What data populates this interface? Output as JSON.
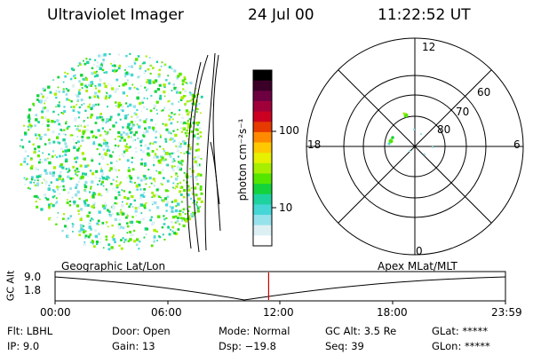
{
  "header": {
    "instrument": "Ultraviolet Imager",
    "date": "24 Jul 00",
    "time": "11:22:52 UT"
  },
  "colorbar": {
    "label": "photon cm⁻²s⁻¹",
    "ticks": [
      "100",
      "10"
    ],
    "colors": [
      "#000000",
      "#3a0028",
      "#6d0040",
      "#a0003a",
      "#cc0020",
      "#e63a00",
      "#ff8a00",
      "#ffc800",
      "#e6f000",
      "#a8ee00",
      "#55e600",
      "#14d23c",
      "#1ed2a0",
      "#46d6d6",
      "#96e2ea",
      "#dcf0f4",
      "#ffffff"
    ]
  },
  "polar": {
    "top": "12",
    "bottom": "0",
    "left": "18",
    "right": "6",
    "ring_labels": [
      "60",
      "70",
      "80"
    ]
  },
  "timeline": {
    "axis_label": "GC Alt",
    "y_ticks": [
      "9.0",
      "1.8"
    ],
    "left_title": "Geographic Lat/Lon",
    "right_title": "Apex MLat/MLT",
    "x_ticks": [
      "00:00",
      "06:00",
      "12:00",
      "18:00",
      "23:59"
    ],
    "current_fraction": 0.4742
  },
  "info": {
    "filter": "Flt: LBHL",
    "ip": "IP: 9.0",
    "door": "Door: Open",
    "gain": "Gain: 13",
    "mode": "Mode: Normal",
    "dsp": "Dsp: −19.8",
    "gcalt": "GC Alt: 3.5 Re",
    "seq": "Seq: 39",
    "glat": "GLat: *****",
    "glon": "GLon: *****"
  }
}
